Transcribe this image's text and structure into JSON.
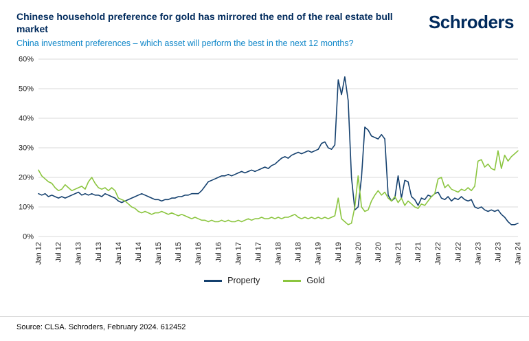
{
  "header": {
    "title": "Chinese household preference for gold has mirrored the end of the real estate bull market",
    "subtitle": "China investment preferences – which asset will perform the best in the next 12 months?",
    "logo": "Schroders"
  },
  "colors": {
    "property": "#14406e",
    "gold": "#8bc53f",
    "title_navy": "#002a5c",
    "subtitle_blue": "#0e86c8",
    "grid": "#d9d9d9"
  },
  "chart_data": {
    "type": "line",
    "title": "Chinese household preference for gold has mirrored the end of the real estate bull market",
    "subtitle": "China investment preferences – which asset will perform the best in the next 12 months?",
    "ylim": [
      0,
      60
    ],
    "y_tick_step": 10,
    "y_tick_format": "percent",
    "grid": true,
    "legend_position": "bottom",
    "x_unit": "month",
    "x_range": [
      "Jan 2012",
      "Jan 2024"
    ],
    "tick_every": 6,
    "x_tick_labels": [
      "Jan 12",
      "Jul 12",
      "Jan 13",
      "Jul 13",
      "Jan 14",
      "Jul 14",
      "Jan 15",
      "Jul 15",
      "Jan 16",
      "Jul 16",
      "Jan 17",
      "Jul 17",
      "Jan 18",
      "Jul 18",
      "Jan 19",
      "Jul 19",
      "Jan 20",
      "Jul 20",
      "Jan 21",
      "Jul 21",
      "Jan 22",
      "Jul 22",
      "Jan 23",
      "Jul 23",
      "Jan 24"
    ],
    "series": [
      {
        "name": "Property",
        "color_key": "property",
        "values": [
          14.5,
          14,
          14.5,
          13.5,
          14,
          13.5,
          13,
          13.5,
          13,
          13.5,
          14,
          14.5,
          15,
          14,
          14.5,
          14,
          14.5,
          14,
          14,
          13.5,
          14.5,
          14,
          13.5,
          13,
          12,
          11.5,
          12,
          12.5,
          13,
          13.5,
          14,
          14.5,
          14,
          13.5,
          13,
          12.5,
          12.5,
          12,
          12.5,
          12.5,
          13,
          13,
          13.5,
          13.5,
          14,
          14,
          14.5,
          14.5,
          14.5,
          15.5,
          17,
          18.5,
          19,
          19.5,
          20,
          20.5,
          20.5,
          21,
          20.5,
          21,
          21.5,
          22,
          21.5,
          22,
          22.5,
          22,
          22.5,
          23,
          23.5,
          23,
          24,
          24.5,
          25.5,
          26.5,
          27,
          26.5,
          27.5,
          28,
          28.5,
          28,
          28.5,
          29,
          28.5,
          29,
          29.5,
          31.5,
          32,
          30,
          29.5,
          31,
          53,
          48,
          54,
          46,
          20,
          9,
          10,
          20,
          37,
          36,
          34,
          33.5,
          33,
          34.5,
          33,
          14,
          12,
          13,
          20.5,
          13,
          19,
          18.5,
          13.5,
          12.5,
          10.5,
          13,
          12.5,
          14,
          13.5,
          14.5,
          15,
          13,
          12.5,
          13.5,
          12,
          13,
          12.5,
          13.5,
          12.5,
          12,
          12.5,
          10,
          9.5,
          10,
          9,
          8.5,
          9,
          8.5,
          9,
          7.5,
          6.5,
          5,
          4,
          4,
          4.5
        ]
      },
      {
        "name": "Gold",
        "color_key": "gold",
        "values": [
          22.5,
          20.5,
          19.5,
          18.5,
          18,
          16.5,
          15.5,
          16,
          17.5,
          16.5,
          15.5,
          16,
          16.5,
          17,
          16,
          18.5,
          20,
          18,
          16.5,
          16,
          16.5,
          15.5,
          16.5,
          15.5,
          13,
          12.5,
          12,
          11,
          10,
          9.5,
          8.5,
          8,
          8.5,
          8,
          7.5,
          8,
          8,
          8.5,
          8,
          7.5,
          8,
          7.5,
          7,
          7.5,
          7,
          6.5,
          6,
          6.5,
          6,
          5.5,
          5.5,
          5,
          5.5,
          5,
          5,
          5.5,
          5,
          5.5,
          5,
          5,
          5.5,
          5,
          5.5,
          6,
          5.5,
          6,
          6,
          6.5,
          6,
          6,
          6.5,
          6,
          6.5,
          6,
          6.5,
          6.5,
          7,
          7.5,
          6.5,
          6,
          6.5,
          6,
          6.5,
          6,
          6.5,
          6,
          6.5,
          6,
          6.5,
          7,
          13,
          6,
          5,
          4,
          4.5,
          10,
          20.5,
          10,
          8.5,
          9,
          12,
          14,
          15.5,
          14,
          15,
          13,
          12,
          13.5,
          11.5,
          13,
          10.5,
          12,
          11,
          10,
          9.5,
          11,
          10.5,
          12,
          13.5,
          14.5,
          19.5,
          20,
          16.5,
          17.5,
          16,
          15.5,
          15,
          16,
          15.5,
          16.5,
          15.5,
          17,
          25.5,
          26,
          23.5,
          24.5,
          23,
          22.5,
          29,
          23,
          27.5,
          25.5,
          27,
          28,
          29
        ]
      }
    ]
  },
  "footer": {
    "source": "Source: CLSA. Schroders, February 2024. 612452"
  }
}
